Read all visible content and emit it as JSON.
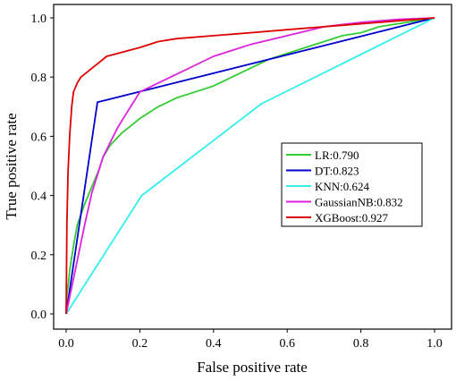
{
  "chart_data": {
    "type": "line",
    "title": "",
    "xlabel": "False positive rate",
    "ylabel": "True positive rate",
    "xlim": [
      0.0,
      1.0
    ],
    "ylim": [
      0.0,
      1.0
    ],
    "xticks": [
      "0.0",
      "0.2",
      "0.4",
      "0.6",
      "0.8",
      "1.0"
    ],
    "yticks": [
      "0.0",
      "0.2",
      "0.4",
      "0.6",
      "0.8",
      "1.0"
    ],
    "grid": false,
    "legend_position": "center-right",
    "series": [
      {
        "name": "LR:0.790",
        "color": "#33cc33",
        "x": [
          0.0,
          0.002,
          0.01,
          0.02,
          0.03,
          0.05,
          0.07,
          0.09,
          0.1,
          0.12,
          0.15,
          0.18,
          0.2,
          0.25,
          0.3,
          0.35,
          0.4,
          0.45,
          0.5,
          0.55,
          0.6,
          0.65,
          0.7,
          0.75,
          0.8,
          0.85,
          0.9,
          0.95,
          1.0
        ],
        "y": [
          0.0,
          0.06,
          0.15,
          0.23,
          0.3,
          0.37,
          0.43,
          0.49,
          0.53,
          0.57,
          0.61,
          0.64,
          0.66,
          0.7,
          0.73,
          0.75,
          0.77,
          0.8,
          0.83,
          0.86,
          0.88,
          0.9,
          0.92,
          0.94,
          0.95,
          0.97,
          0.98,
          0.99,
          1.0
        ]
      },
      {
        "name": "DT:0.823",
        "color": "#0000cc",
        "x": [
          0.0,
          0.085,
          1.0
        ],
        "y": [
          0.0,
          0.715,
          1.0
        ]
      },
      {
        "name": "KNN:0.624",
        "color": "#33eeee",
        "x": [
          0.0,
          0.205,
          0.53,
          1.0
        ],
        "y": [
          0.0,
          0.4,
          0.71,
          1.0
        ]
      },
      {
        "name": "GaussianNB:0.832",
        "color": "#dd22dd",
        "x": [
          0.0,
          0.01,
          0.03,
          0.05,
          0.07,
          0.09,
          0.1,
          0.12,
          0.14,
          0.16,
          0.18,
          0.2,
          0.25,
          0.3,
          0.35,
          0.4,
          0.45,
          0.5,
          0.6,
          0.7,
          0.8,
          0.9,
          1.0
        ],
        "y": [
          0.0,
          0.06,
          0.18,
          0.3,
          0.41,
          0.49,
          0.53,
          0.58,
          0.63,
          0.67,
          0.71,
          0.75,
          0.78,
          0.81,
          0.84,
          0.87,
          0.89,
          0.91,
          0.94,
          0.97,
          0.985,
          0.995,
          1.0
        ]
      },
      {
        "name": "XGBoost:0.927",
        "color": "#dd0000",
        "x": [
          0.0,
          0.002,
          0.005,
          0.01,
          0.015,
          0.02,
          0.03,
          0.04,
          0.05,
          0.07,
          0.09,
          0.11,
          0.14,
          0.17,
          0.2,
          0.25,
          0.3,
          0.4,
          0.5,
          0.6,
          0.7,
          0.8,
          0.9,
          0.95,
          1.0
        ],
        "y": [
          0.0,
          0.3,
          0.48,
          0.61,
          0.7,
          0.75,
          0.78,
          0.8,
          0.81,
          0.83,
          0.85,
          0.87,
          0.88,
          0.89,
          0.9,
          0.92,
          0.93,
          0.94,
          0.95,
          0.96,
          0.97,
          0.98,
          0.99,
          0.995,
          1.0
        ]
      }
    ]
  }
}
